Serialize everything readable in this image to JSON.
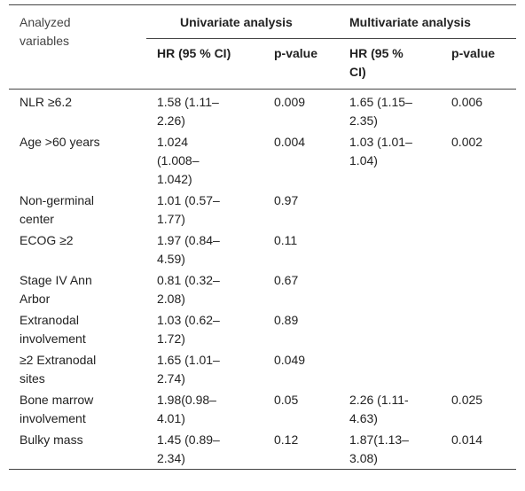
{
  "table": {
    "corner": "Analyzed variables",
    "groups": [
      "Univariate analysis",
      "Multivariate analysis"
    ],
    "subheaders": [
      "HR (95 % CI)",
      "p-value",
      "HR (95 % CI)",
      "p-value"
    ],
    "rows": [
      [
        "NLR ≥6.2",
        "1.58 (1.11–2.26)",
        "0.009",
        "1.65 (1.15–2.35)",
        "0.006"
      ],
      [
        "Age >60 years",
        "1.024 (1.008–1.042)",
        "0.004",
        "1.03 (1.01–1.04)",
        "0.002"
      ],
      [
        "Non-germinal center",
        "1.01 (0.57–1.77)",
        "0.97"
      ],
      [
        "ECOG ≥2",
        "1.97 (0.84–4.59)",
        "0.11"
      ],
      [
        "Stage IV Ann Arbor",
        "0.81 (0.32–2.08)",
        "0.67"
      ],
      [
        "Extranodal involvement",
        "1.03 (0.62–1.72)",
        "0.89"
      ],
      [
        "≥2 Extranodal sites",
        "1.65 (1.01–2.74)",
        "0.049"
      ],
      [
        "Bone marrow involvement",
        "1.98(0.98–4.01)",
        "0.05",
        "2.26 (1.11-4.63)",
        "0.025"
      ],
      [
        "Bulky mass",
        "1.45 (0.89–2.34)",
        "0.12",
        "1.87(1.13–3.08)",
        "0.014"
      ]
    ]
  }
}
